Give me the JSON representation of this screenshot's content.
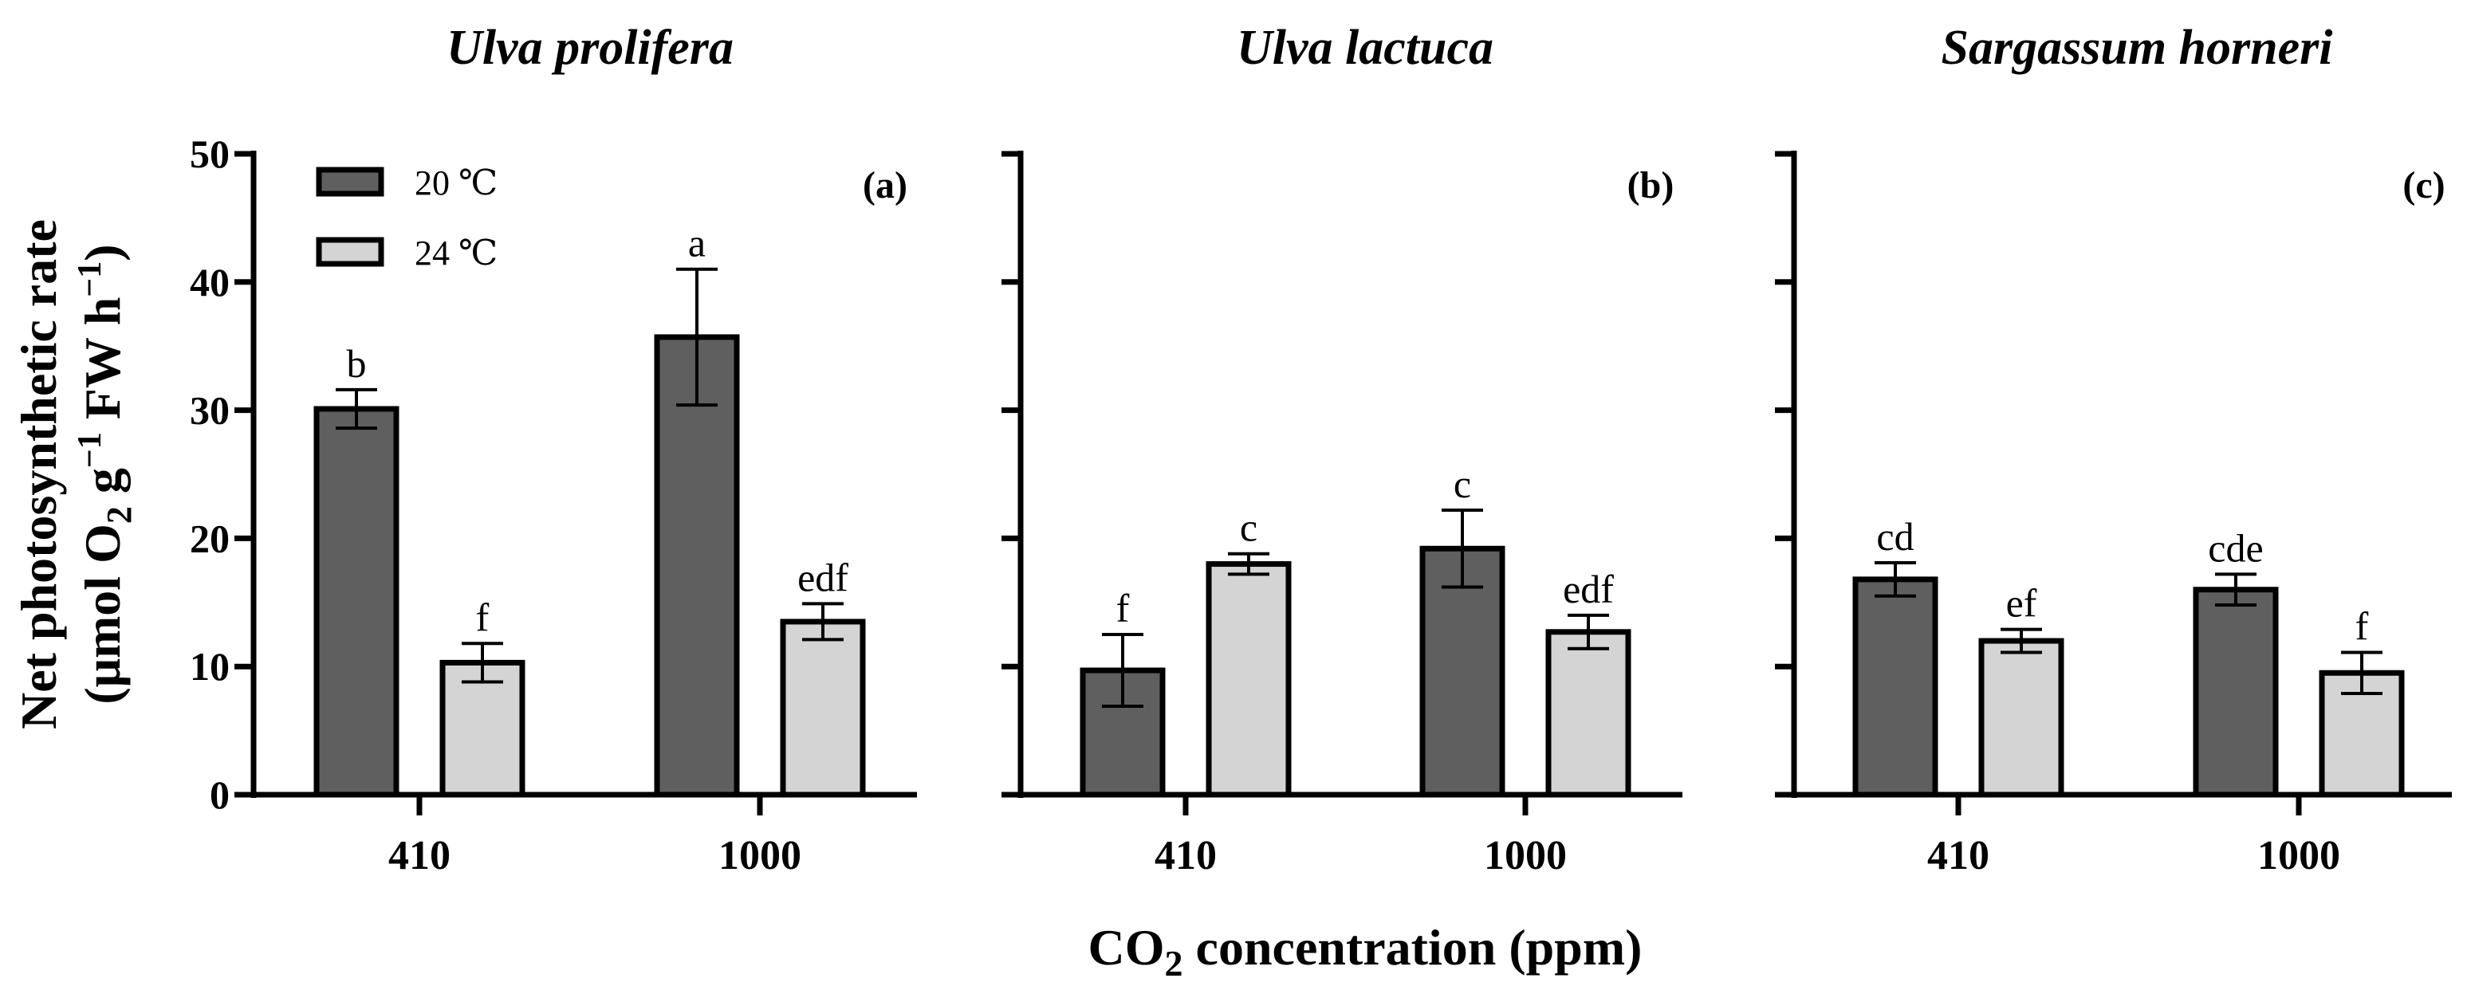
{
  "colors": {
    "series_20C": "#5f5f5f",
    "series_24C": "#d4d4d4",
    "axis": "#000000"
  },
  "figure": {
    "ylabel_line1": "Net photosynthetic rate",
    "ylabel_line2_prefix": "(μmol O",
    "ylabel_line2_sub": "2",
    "ylabel_line2_mid1": " g",
    "ylabel_line2_sup1": "−1",
    "ylabel_line2_mid2": " FW h",
    "ylabel_line2_sup2": "−1",
    "ylabel_line2_suffix": ")",
    "xlabel_prefix": "CO",
    "xlabel_sub": "2",
    "xlabel_suffix": " concentration (ppm)",
    "legend": [
      "20 ℃",
      "24 ℃"
    ],
    "y_ticks": [
      "0",
      "10",
      "20",
      "30",
      "40",
      "50"
    ]
  },
  "chart_data": [
    {
      "type": "bar",
      "title": "Ulva prolifera",
      "panel_label": "(a)",
      "categories": [
        "410",
        "1000"
      ],
      "xlabel": "CO2 concentration (ppm)",
      "ylabel": "Net photosynthetic rate (μmol O2 g−1 FW h−1)",
      "ylim": [
        0,
        50
      ],
      "y_ticks": [
        0,
        10,
        20,
        30,
        40,
        50
      ],
      "grid": false,
      "legend": "top-left",
      "series": [
        {
          "name": "20 ℃",
          "values": [
            30.1,
            35.7
          ],
          "errors": [
            1.5,
            5.3
          ],
          "letters": [
            "b",
            "a"
          ]
        },
        {
          "name": "24 ℃",
          "values": [
            10.3,
            13.5
          ],
          "errors": [
            1.5,
            1.4
          ],
          "letters": [
            "f",
            "edf"
          ]
        }
      ]
    },
    {
      "type": "bar",
      "title": "Ulva lactuca",
      "panel_label": "(b)",
      "categories": [
        "410",
        "1000"
      ],
      "ylim": [
        0,
        50
      ],
      "y_ticks": [
        0,
        10,
        20,
        30,
        40,
        50
      ],
      "grid": false,
      "series": [
        {
          "name": "20 ℃",
          "values": [
            9.7,
            19.2
          ],
          "errors": [
            2.8,
            3.0
          ],
          "letters": [
            "f",
            "c"
          ]
        },
        {
          "name": "24 ℃",
          "values": [
            18.0,
            12.7
          ],
          "errors": [
            0.8,
            1.3
          ],
          "letters": [
            "c",
            "edf"
          ]
        }
      ]
    },
    {
      "type": "bar",
      "title": "Sargassum horneri",
      "panel_label": "(c)",
      "categories": [
        "410",
        "1000"
      ],
      "ylim": [
        0,
        50
      ],
      "y_ticks": [
        0,
        10,
        20,
        30,
        40,
        50
      ],
      "grid": false,
      "series": [
        {
          "name": "20 ℃",
          "values": [
            16.8,
            16.0
          ],
          "errors": [
            1.3,
            1.2
          ],
          "letters": [
            "cd",
            "cde"
          ]
        },
        {
          "name": "24 ℃",
          "values": [
            12.0,
            9.5
          ],
          "errors": [
            0.9,
            1.6
          ],
          "letters": [
            "ef",
            "f"
          ]
        }
      ]
    }
  ]
}
